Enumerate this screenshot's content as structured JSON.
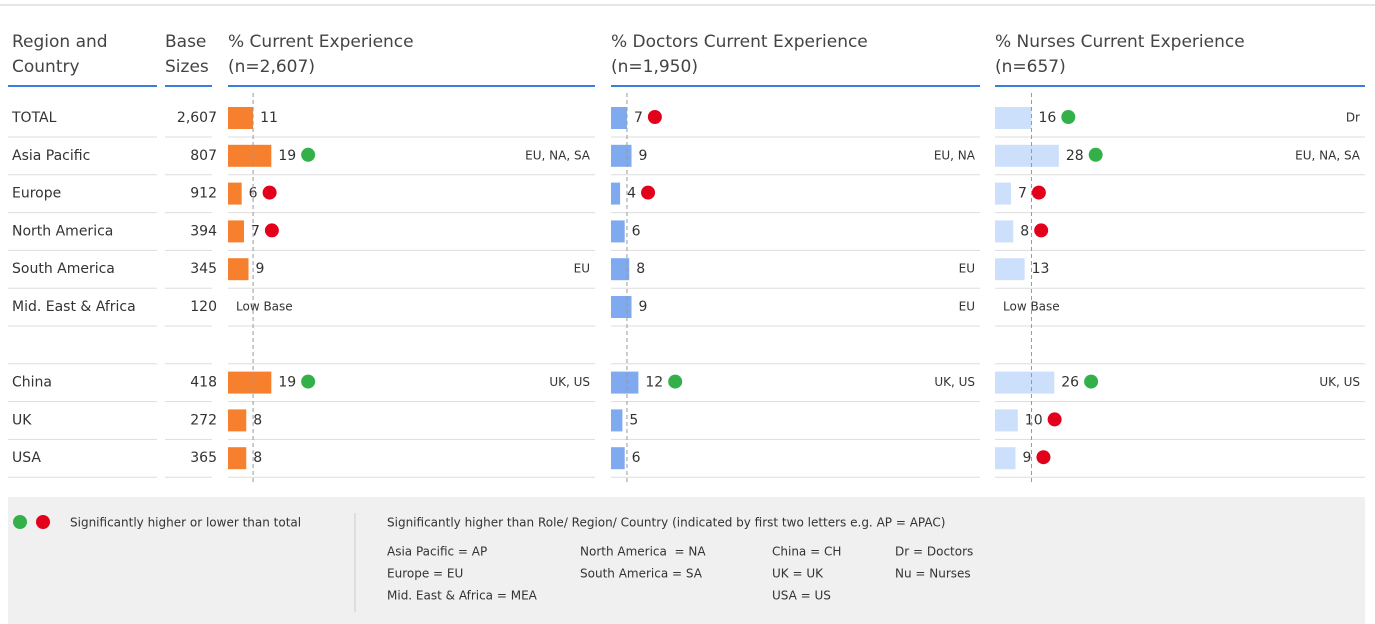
{
  "headers": {
    "region": [
      "Region and",
      "Country"
    ],
    "base": [
      "Base",
      "Sizes"
    ],
    "groups": [
      {
        "title": "% Current Experience",
        "n": "(n=2,607)",
        "color": "#f7802f"
      },
      {
        "title": "% Doctors Current Experience",
        "n": "(n=1,950)",
        "color": "#7faaf0"
      },
      {
        "title": "% Nurses Current Experience",
        "n": "(n=657)",
        "color": "#cde0fb"
      }
    ]
  },
  "rows": [
    {
      "name": "TOTAL",
      "base": "2,607",
      "cells": [
        {
          "value": 11
        },
        {
          "value": 7,
          "dot_color": "#e3001b"
        },
        {
          "value": 16,
          "dot_color": "#33b04a",
          "sig": "Dr"
        }
      ]
    },
    {
      "name": "Asia Pacific",
      "base": "807",
      "cells": [
        {
          "value": 19,
          "dot_color": "#33b04a",
          "sig": "EU, NA, SA"
        },
        {
          "value": 9,
          "sig": "EU, NA"
        },
        {
          "value": 28,
          "dot_color": "#33b04a",
          "sig": "EU, NA, SA"
        }
      ]
    },
    {
      "name": "Europe",
      "base": "912",
      "cells": [
        {
          "value": 6,
          "dot_color": "#e3001b"
        },
        {
          "value": 4,
          "dot_color": "#e3001b"
        },
        {
          "value": 7,
          "dot_color": "#e3001b"
        }
      ]
    },
    {
      "name": "North America",
      "base": "394",
      "cells": [
        {
          "value": 7,
          "dot_color": "#e3001b"
        },
        {
          "value": 6
        },
        {
          "value": 8,
          "dot_color": "#e3001b"
        }
      ]
    },
    {
      "name": "South America",
      "base": "345",
      "cells": [
        {
          "value": 9,
          "sig": "EU"
        },
        {
          "value": 8,
          "sig": "EU"
        },
        {
          "value": 13
        }
      ]
    },
    {
      "name": "Mid. East & Africa",
      "base": "120",
      "cells": [
        {
          "label": "Low Base"
        },
        {
          "value": 9,
          "sig": "EU"
        },
        {
          "label": "Low Base"
        }
      ]
    },
    null,
    {
      "name": "China",
      "base": "418",
      "cells": [
        {
          "value": 19,
          "dot_color": "#33b04a",
          "sig": "UK, US"
        },
        {
          "value": 12,
          "dot_color": "#33b04a",
          "sig": "UK, US"
        },
        {
          "value": 26,
          "dot_color": "#33b04a",
          "sig": "UK, US"
        }
      ]
    },
    {
      "name": "UK",
      "base": "272",
      "cells": [
        {
          "value": 8
        },
        {
          "value": 5
        },
        {
          "value": 10,
          "dot_color": "#e3001b"
        }
      ]
    },
    {
      "name": "USA",
      "base": "365",
      "cells": [
        {
          "value": 8
        },
        {
          "value": 6
        },
        {
          "value": 9,
          "dot_color": "#e3001b"
        }
      ]
    }
  ],
  "legend": {
    "dots_text": "Significantly higher or lower than total",
    "sig_text": "Significantly higher than Role/ Region/ Country (indicated by first two letters e.g. AP = APAC)",
    "keys": [
      [
        "Asia Pacific = AP",
        "Europe = EU",
        "Mid. East & Africa = MEA"
      ],
      [
        "North America  = NA",
        "South America = SA"
      ],
      [
        "China = CH",
        "UK = UK",
        "USA = US"
      ],
      [
        "Dr = Doctors",
        "Nu = Nurses"
      ]
    ]
  }
}
